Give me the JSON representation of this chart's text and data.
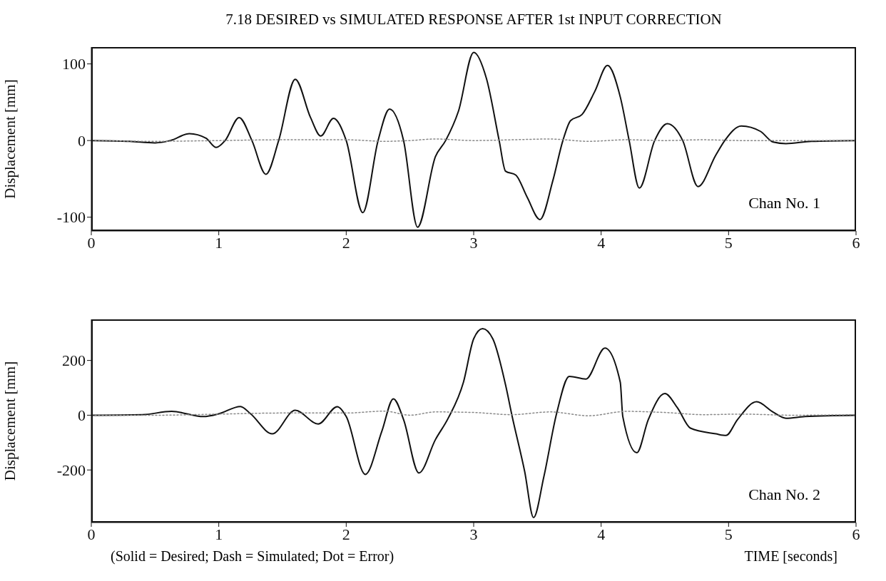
{
  "chart_data": [
    {
      "type": "line",
      "title": "7.18 DESIRED vs SIMULATED RESPONSE AFTER 1st INPUT CORRECTION",
      "ylabel": "Displacement [mm]",
      "xlim": [
        0,
        6
      ],
      "xticks": [
        0,
        1,
        2,
        3,
        4,
        5,
        6
      ],
      "ylim": [
        -118,
        122
      ],
      "yticks": [
        -100,
        0,
        100
      ],
      "annotations": [
        "Chan No. 1"
      ],
      "series": [
        {
          "color": "#111111",
          "line_style": "solid",
          "x": [
            0,
            0.3,
            0.5,
            0.62,
            0.77,
            0.9,
            0.98,
            1.05,
            1.16,
            1.26,
            1.37,
            1.47,
            1.6,
            1.72,
            1.8,
            1.9,
            2.0,
            2.13,
            2.25,
            2.34,
            2.45,
            2.56,
            2.7,
            2.78,
            2.88,
            3.0,
            3.1,
            3.2,
            3.25,
            3.33,
            3.42,
            3.52,
            3.62,
            3.7,
            3.76,
            3.85,
            3.95,
            4.05,
            4.15,
            4.22,
            4.3,
            4.42,
            4.52,
            4.64,
            4.76,
            4.9,
            4.97,
            5.1,
            5.25,
            5.35,
            5.45,
            5.65,
            6.0
          ],
          "values": [
            0,
            -1,
            -3,
            0,
            9,
            3,
            -9,
            0,
            30,
            0,
            -44,
            0,
            80,
            30,
            6,
            29,
            0,
            -94,
            0,
            41,
            0,
            -113,
            -21,
            0,
            38,
            115,
            81,
            0,
            -40,
            -45,
            -74,
            -103,
            -53,
            0,
            26,
            34,
            64,
            98,
            57,
            0,
            -62,
            0,
            22,
            0,
            -60,
            -19,
            0,
            19,
            12,
            -2,
            -4,
            -1,
            0
          ]
        },
        {
          "color": "#888888",
          "line_style": "dotted",
          "x": [
            0,
            0.5,
            1,
            1.5,
            2,
            2.3,
            2.5,
            2.7,
            3,
            3.3,
            3.6,
            3.9,
            4.2,
            4.5,
            4.8,
            5.1,
            5.5,
            6
          ],
          "values": [
            0,
            -1,
            0,
            1,
            1,
            -1,
            0,
            2,
            0,
            1,
            2,
            -1,
            1,
            0,
            1,
            0,
            0,
            0
          ]
        }
      ]
    },
    {
      "type": "line",
      "ylabel": "Displacement [mm]",
      "xlabel": "TIME [seconds]",
      "xlim": [
        0,
        6
      ],
      "xticks": [
        0,
        1,
        2,
        3,
        4,
        5,
        6
      ],
      "ylim": [
        -392,
        350
      ],
      "yticks": [
        -200,
        0,
        200
      ],
      "annotations": [
        "Chan No. 2",
        "(Solid = Desired; Dash = Simulated; Dot = Error)"
      ],
      "series": [
        {
          "color": "#111111",
          "line_style": "solid",
          "x": [
            0,
            0.4,
            0.63,
            0.88,
            1.0,
            1.17,
            1.25,
            1.42,
            1.6,
            1.78,
            1.93,
            2.0,
            2.15,
            2.28,
            2.37,
            2.45,
            2.57,
            2.7,
            2.8,
            2.92,
            3.0,
            3.07,
            3.15,
            3.25,
            3.3,
            3.4,
            3.47,
            3.55,
            3.65,
            3.75,
            3.88,
            4.03,
            4.15,
            4.17,
            4.28,
            4.37,
            4.5,
            4.6,
            4.7,
            4.9,
            4.98,
            5.07,
            5.22,
            5.35,
            5.45,
            5.6,
            6.0
          ],
          "values": [
            0,
            2,
            14,
            -5,
            5,
            32,
            5,
            -68,
            18,
            -32,
            31,
            -5,
            -216,
            -58,
            60,
            -16,
            -211,
            -89,
            -11,
            121,
            279,
            316,
            279,
            111,
            0,
            -205,
            -374,
            -226,
            5,
            142,
            132,
            245,
            121,
            -5,
            -137,
            -16,
            79,
            26,
            -47,
            -68,
            -74,
            -16,
            49,
            11,
            -11,
            -5,
            0
          ]
        },
        {
          "color": "#888888",
          "line_style": "dotted",
          "x": [
            0,
            0.5,
            1,
            1.5,
            2,
            2.3,
            2.5,
            2.7,
            3,
            3.3,
            3.6,
            3.9,
            4.2,
            4.5,
            4.8,
            5.1,
            5.5,
            6
          ],
          "values": [
            0,
            0,
            4,
            8,
            8,
            15,
            0,
            12,
            10,
            2,
            12,
            -2,
            14,
            10,
            2,
            4,
            0,
            2
          ]
        }
      ]
    }
  ]
}
